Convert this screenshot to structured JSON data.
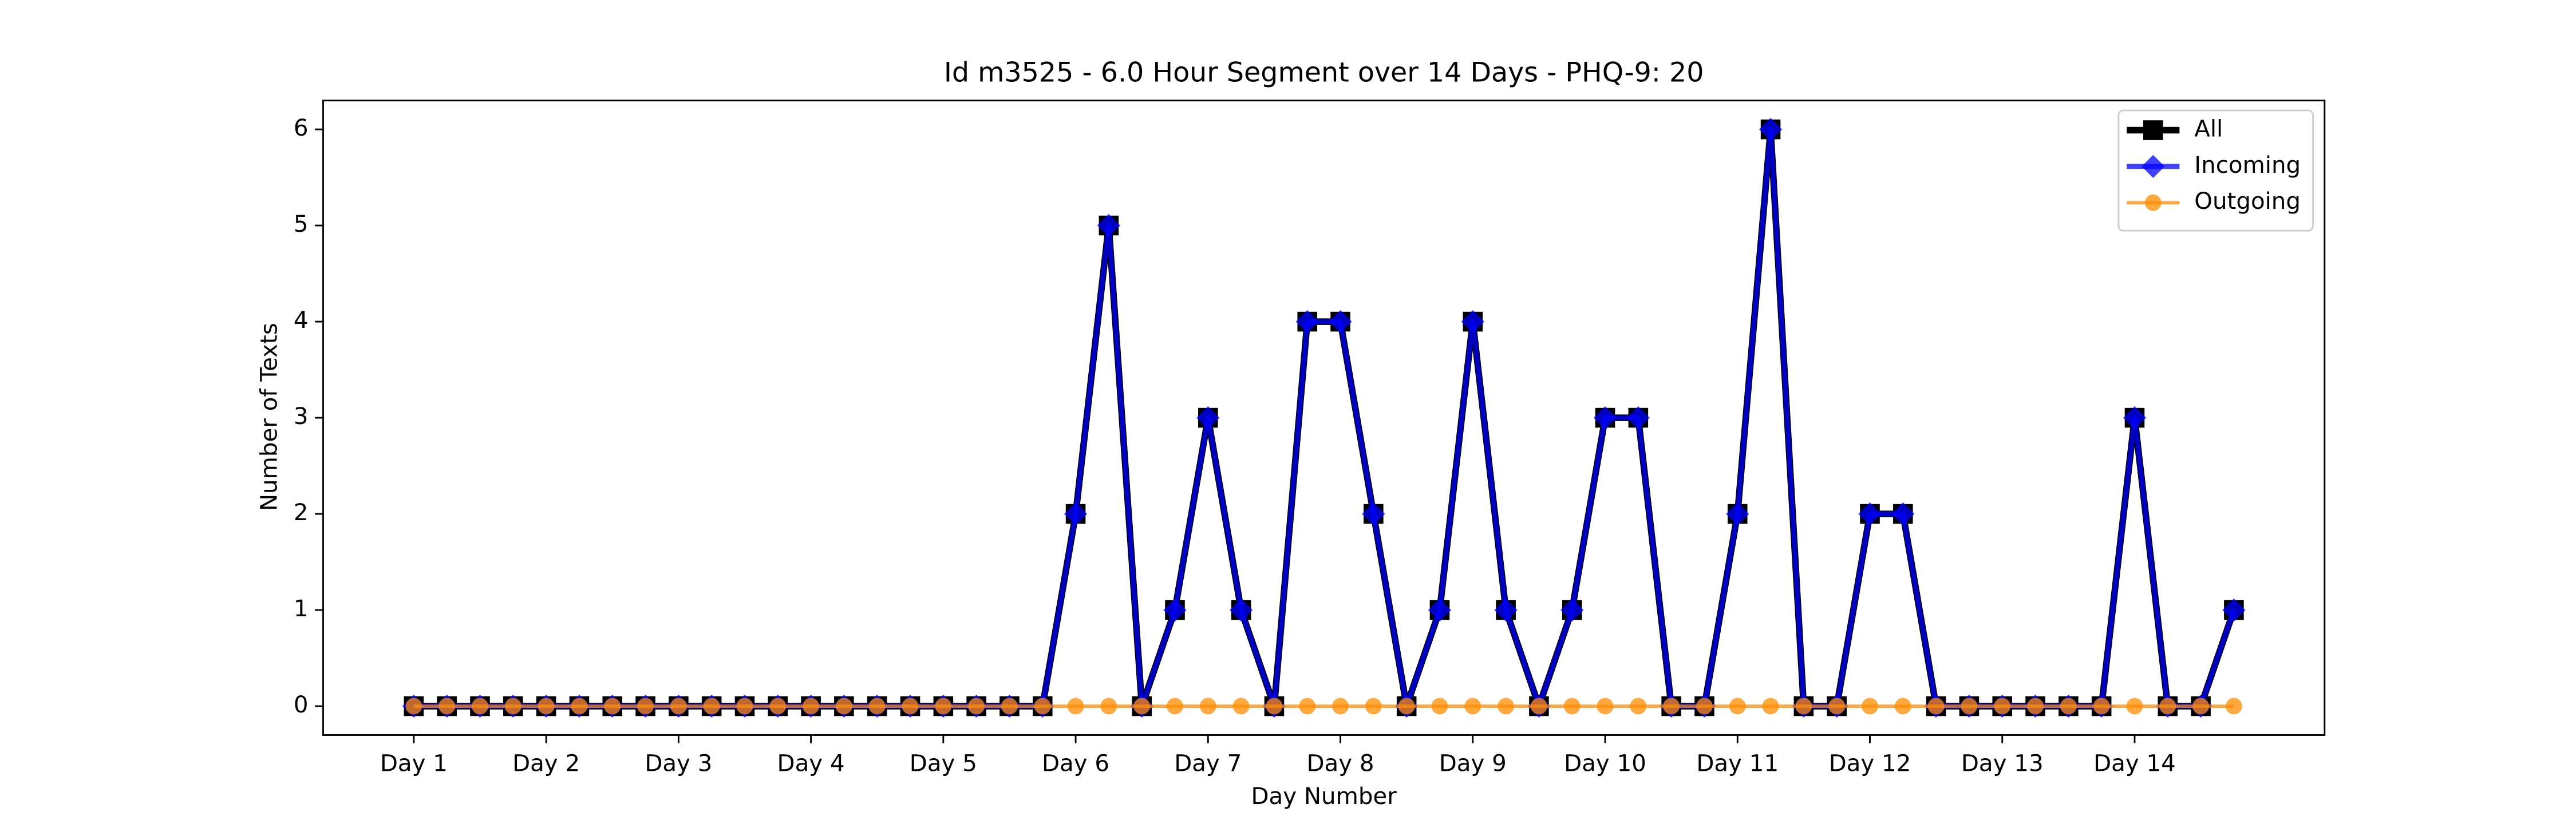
{
  "chart_data": {
    "type": "line",
    "title": "Id m3525 - 6.0 Hour Segment over 14 Days - PHQ-9: 20",
    "xlabel": "Day Number",
    "ylabel": "Number of Texts",
    "categories": [
      "Day 1",
      null,
      null,
      null,
      "Day 2",
      null,
      null,
      null,
      "Day 3",
      null,
      null,
      null,
      "Day 4",
      null,
      null,
      null,
      "Day 5",
      null,
      null,
      null,
      "Day 6",
      null,
      null,
      null,
      "Day 7",
      null,
      null,
      null,
      "Day 8",
      null,
      null,
      null,
      "Day 9",
      null,
      null,
      null,
      "Day 10",
      null,
      null,
      null,
      "Day 11",
      null,
      null,
      null,
      "Day 12",
      null,
      null,
      null,
      "Day 13",
      null,
      null,
      null,
      "Day 14",
      null,
      null,
      null
    ],
    "series": [
      {
        "name": "All",
        "color": "#000000",
        "marker": "square",
        "values": [
          0,
          0,
          0,
          0,
          0,
          0,
          0,
          0,
          0,
          0,
          0,
          0,
          0,
          0,
          0,
          0,
          0,
          0,
          0,
          0,
          2,
          5,
          0,
          1,
          3,
          1,
          0,
          4,
          4,
          2,
          0,
          1,
          4,
          1,
          0,
          1,
          3,
          3,
          0,
          0,
          2,
          6,
          0,
          0,
          2,
          2,
          0,
          0,
          0,
          0,
          0,
          0,
          3,
          0,
          0,
          1
        ]
      },
      {
        "name": "Incoming",
        "color": "#0000ff",
        "marker": "diamond",
        "values": [
          0,
          0,
          0,
          0,
          0,
          0,
          0,
          0,
          0,
          0,
          0,
          0,
          0,
          0,
          0,
          0,
          0,
          0,
          0,
          0,
          2,
          5,
          0,
          1,
          3,
          1,
          0,
          4,
          4,
          2,
          0,
          1,
          4,
          1,
          0,
          1,
          3,
          3,
          0,
          0,
          2,
          6,
          0,
          0,
          2,
          2,
          0,
          0,
          0,
          0,
          0,
          0,
          3,
          0,
          0,
          1
        ]
      },
      {
        "name": "Outgoing",
        "color": "#ff8c00",
        "marker": "circle",
        "values": [
          0,
          0,
          0,
          0,
          0,
          0,
          0,
          0,
          0,
          0,
          0,
          0,
          0,
          0,
          0,
          0,
          0,
          0,
          0,
          0,
          0,
          0,
          0,
          0,
          0,
          0,
          0,
          0,
          0,
          0,
          0,
          0,
          0,
          0,
          0,
          0,
          0,
          0,
          0,
          0,
          0,
          0,
          0,
          0,
          0,
          0,
          0,
          0,
          0,
          0,
          0,
          0,
          0,
          0,
          0,
          0
        ]
      }
    ],
    "ylim": [
      -0.3,
      6.3
    ],
    "yticks": [
      0,
      1,
      2,
      3,
      4,
      5,
      6
    ],
    "legend": "upper right"
  }
}
